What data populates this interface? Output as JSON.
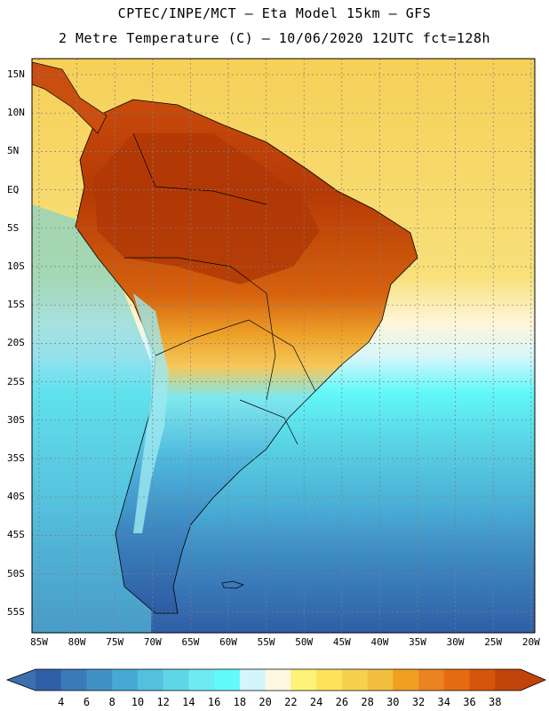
{
  "title": {
    "line1": "CPTEC/INPE/MCT –  Eta Model 15km – GFS",
    "line2": "2 Metre Temperature (C) – 10/06/2020 12UTC fct=128h"
  },
  "map": {
    "lat_labels": [
      "15N",
      "10N",
      "5N",
      "EQ",
      "5S",
      "10S",
      "15S",
      "20S",
      "25S",
      "30S",
      "35S",
      "40S",
      "45S",
      "50S",
      "55S"
    ],
    "lon_labels": [
      "85W",
      "80W",
      "75W",
      "70W",
      "65W",
      "60W",
      "55W",
      "50W",
      "45W",
      "40W",
      "35W",
      "30W",
      "25W",
      "20W"
    ]
  },
  "colorbar": {
    "labels": [
      "4",
      "6",
      "8",
      "10",
      "12",
      "14",
      "16",
      "18",
      "20",
      "22",
      "24",
      "26",
      "28",
      "30",
      "32",
      "34",
      "36",
      "38"
    ],
    "low_color": "#3b6fb0",
    "high_color": "#c0440a",
    "colors": [
      "#2f5fa8",
      "#3a7ab8",
      "#3e92c6",
      "#48aad4",
      "#55c0de",
      "#5fd6e8",
      "#6eeaf2",
      "#62fafa",
      "#d2f6fa",
      "#fff8e0",
      "#fff27a",
      "#fde35a",
      "#f8d050",
      "#f2bf40",
      "#f0a020",
      "#eb8420",
      "#e56a12",
      "#d6550c",
      "#c0440a"
    ]
  }
}
